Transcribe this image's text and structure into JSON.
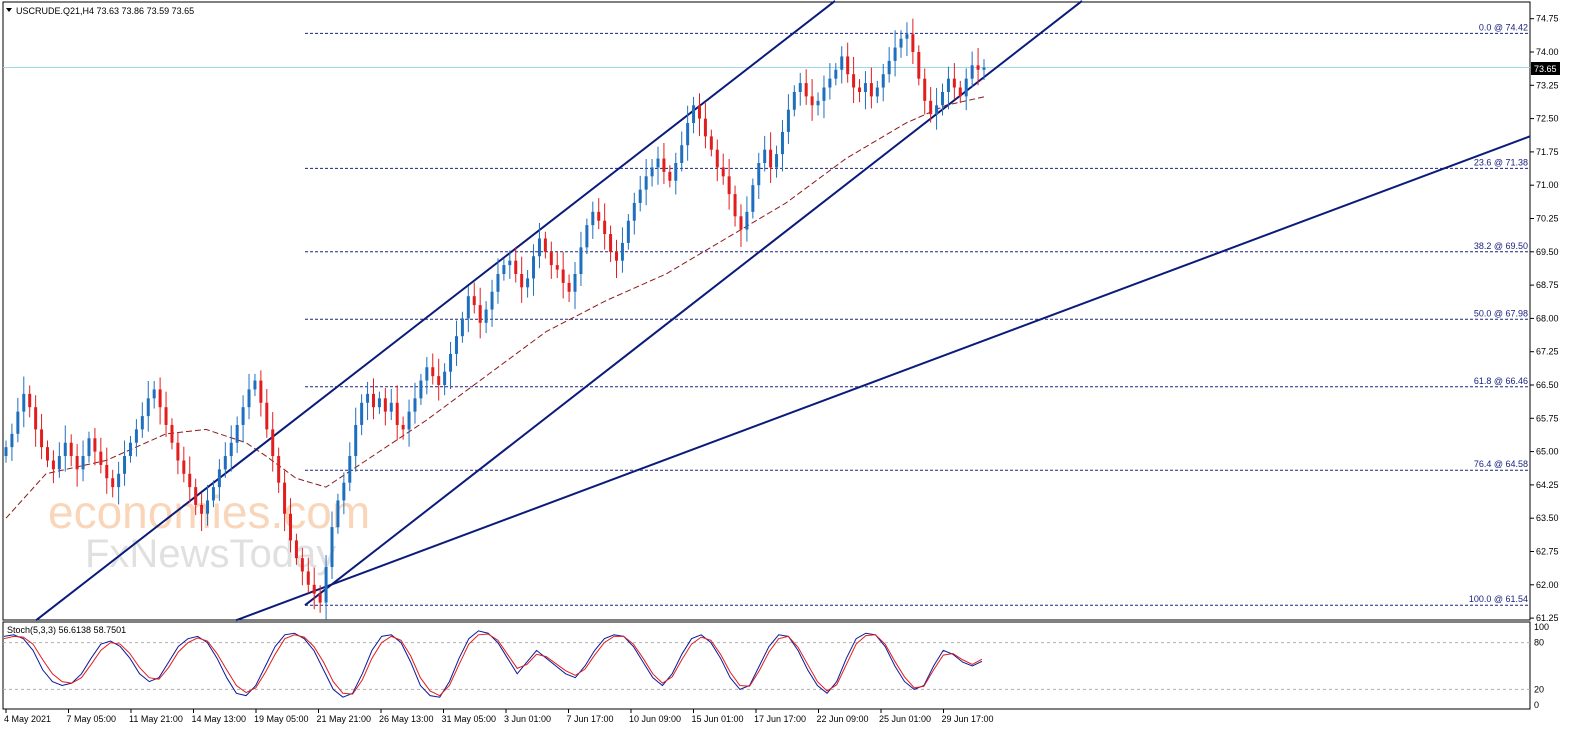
{
  "chart_data": {
    "type": "candlestick",
    "symbol_header": "USCRUDE.Q21,H4  73.63 73.86 73.59 73.65",
    "y_ticks": [
      "74.75",
      "74.00",
      "73.25",
      "72.50",
      "71.75",
      "71.00",
      "70.25",
      "69.50",
      "68.75",
      "68.00",
      "67.25",
      "66.50",
      "65.75",
      "65.00",
      "64.25",
      "63.50",
      "62.75",
      "62.00",
      "61.25"
    ],
    "ylim": [
      61.0,
      75.1
    ],
    "current_price_label": "73.65",
    "current_price": 73.65,
    "x_ticks": [
      "4 May 2021",
      "7 May 05:00",
      "11 May 21:00",
      "14 May 13:00",
      "19 May 05:00",
      "21 May 21:00",
      "26 May 13:00",
      "31 May 05:00",
      "3 Jun 01:00",
      "7 Jun 17:00",
      "10 Jun 09:00",
      "15 Jun 01:00",
      "17 Jun 17:00",
      "22 Jun 09:00",
      "25 Jun 01:00",
      "29 Jun 17:00"
    ],
    "fib_levels": [
      {
        "label": "0.0 @ 74.42",
        "value": 74.42
      },
      {
        "label": "23.6 @ 71.38",
        "value": 71.38
      },
      {
        "label": "38.2 @ 69.50",
        "value": 69.5
      },
      {
        "label": "50.0 @ 67.98",
        "value": 67.98
      },
      {
        "label": "61.8 @ 66.46",
        "value": 66.46
      },
      {
        "label": "76.4 @ 64.58",
        "value": 64.58
      },
      {
        "label": "100.0 @ 61.54",
        "value": 61.54
      }
    ],
    "closes": [
      65.1,
      65.4,
      65.9,
      66.3,
      66.0,
      65.5,
      65.1,
      64.8,
      64.6,
      64.9,
      65.2,
      64.9,
      64.6,
      64.9,
      65.3,
      65.0,
      64.7,
      64.4,
      64.2,
      64.5,
      64.9,
      65.2,
      65.5,
      65.8,
      66.2,
      66.4,
      66.0,
      65.6,
      65.2,
      64.8,
      64.5,
      64.2,
      63.8,
      63.6,
      63.9,
      64.2,
      64.6,
      64.9,
      65.2,
      65.6,
      66.0,
      66.4,
      66.6,
      66.1,
      65.5,
      64.9,
      64.3,
      63.6,
      63.0,
      62.6,
      62.3,
      62.0,
      61.8,
      61.6,
      62.4,
      63.3,
      63.9,
      64.3,
      64.9,
      65.6,
      66.1,
      66.3,
      66.0,
      66.2,
      65.9,
      66.1,
      65.6,
      65.5,
      65.9,
      66.2,
      66.6,
      66.9,
      66.7,
      66.5,
      66.8,
      67.2,
      67.6,
      68.0,
      68.5,
      68.3,
      67.9,
      68.2,
      68.6,
      69.0,
      69.2,
      69.3,
      69.0,
      68.7,
      68.9,
      69.4,
      69.8,
      69.5,
      69.2,
      69.1,
      68.8,
      68.6,
      69.0,
      69.6,
      70.1,
      70.4,
      70.2,
      69.9,
      69.5,
      69.3,
      69.7,
      70.2,
      70.6,
      70.9,
      71.2,
      71.4,
      71.6,
      71.3,
      71.1,
      71.5,
      71.9,
      72.4,
      72.8,
      72.5,
      72.1,
      71.8,
      71.4,
      71.2,
      70.8,
      70.3,
      70.0,
      70.4,
      71.0,
      71.5,
      71.8,
      71.4,
      71.7,
      72.2,
      72.7,
      73.1,
      73.3,
      73.0,
      72.8,
      72.9,
      73.2,
      73.4,
      73.6,
      73.9,
      73.5,
      73.2,
      73.1,
      73.3,
      73.0,
      73.2,
      73.5,
      73.8,
      74.1,
      74.3,
      74.4,
      74.0,
      73.4,
      72.9,
      72.6,
      72.8,
      73.1,
      73.4,
      73.2,
      73.0,
      73.4,
      73.7,
      73.6,
      73.65
    ],
    "moving_average": [
      [
        0,
        63.5
      ],
      [
        40,
        64.5
      ],
      [
        100,
        64.8
      ],
      [
        160,
        65.4
      ],
      [
        200,
        65.5
      ],
      [
        240,
        65.2
      ],
      [
        260,
        64.9
      ],
      [
        290,
        64.4
      ],
      [
        320,
        64.2
      ],
      [
        360,
        64.8
      ],
      [
        420,
        65.7
      ],
      [
        480,
        66.7
      ],
      [
        540,
        67.7
      ],
      [
        600,
        68.4
      ],
      [
        660,
        69.0
      ],
      [
        720,
        69.8
      ],
      [
        780,
        70.6
      ],
      [
        840,
        71.6
      ],
      [
        900,
        72.4
      ],
      [
        940,
        72.8
      ],
      [
        980,
        73.0
      ]
    ],
    "stochastic": {
      "label": "Stoch(5,3,3) 56.6138 58.7501",
      "ticks": [
        "100",
        "80",
        "20",
        "0"
      ],
      "levels": [
        80,
        20
      ],
      "main": [
        88,
        90,
        85,
        70,
        45,
        30,
        25,
        28,
        40,
        60,
        78,
        82,
        75,
        60,
        40,
        30,
        35,
        55,
        75,
        85,
        88,
        80,
        60,
        35,
        15,
        12,
        25,
        50,
        75,
        90,
        92,
        85,
        70,
        45,
        20,
        10,
        15,
        40,
        70,
        88,
        90,
        80,
        55,
        25,
        12,
        10,
        30,
        60,
        85,
        95,
        92,
        80,
        60,
        40,
        55,
        70,
        60,
        50,
        40,
        35,
        50,
        70,
        85,
        90,
        88,
        75,
        55,
        35,
        25,
        40,
        65,
        85,
        90,
        80,
        60,
        35,
        20,
        25,
        50,
        75,
        90,
        88,
        70,
        45,
        25,
        15,
        30,
        60,
        85,
        92,
        90,
        75,
        50,
        30,
        20,
        25,
        50,
        70,
        65,
        55,
        50,
        56
      ],
      "signal": [
        85,
        88,
        87,
        78,
        58,
        40,
        30,
        28,
        35,
        52,
        70,
        80,
        78,
        66,
        48,
        35,
        33,
        48,
        68,
        80,
        86,
        82,
        66,
        45,
        25,
        16,
        22,
        42,
        65,
        85,
        90,
        87,
        75,
        55,
        30,
        15,
        14,
        32,
        60,
        80,
        88,
        83,
        63,
        35,
        18,
        12,
        25,
        52,
        78,
        90,
        91,
        83,
        65,
        47,
        52,
        65,
        62,
        53,
        44,
        38,
        46,
        64,
        80,
        88,
        88,
        78,
        60,
        40,
        28,
        36,
        58,
        78,
        87,
        83,
        65,
        42,
        25,
        24,
        44,
        68,
        85,
        88,
        74,
        52,
        30,
        18,
        26,
        52,
        78,
        89,
        90,
        78,
        56,
        36,
        22,
        24,
        45,
        64,
        66,
        58,
        52,
        58.75
      ]
    }
  }
}
